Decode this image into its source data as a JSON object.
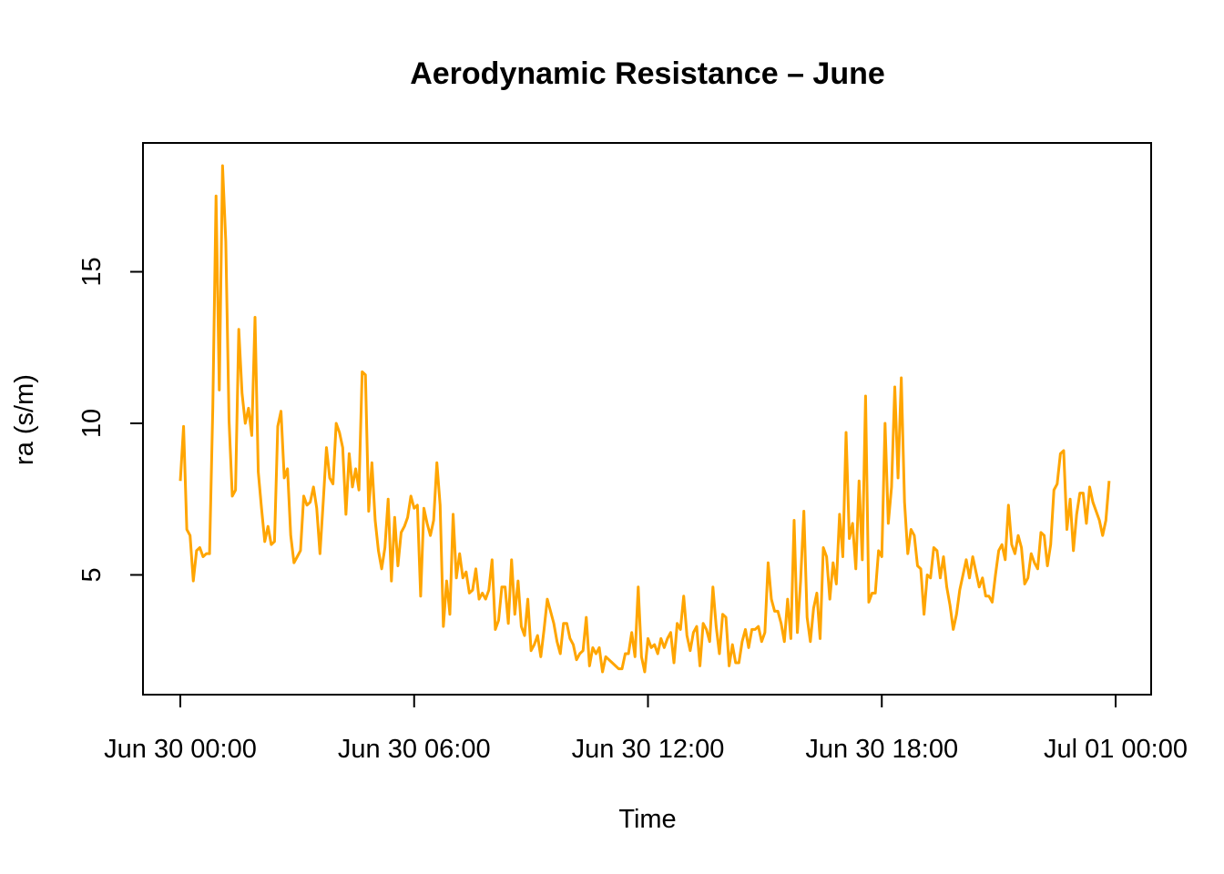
{
  "chart_data": {
    "type": "line",
    "title": "Aerodynamic Resistance – June",
    "xlabel": "Time",
    "ylabel": "ra (s/m)",
    "x_start": "Jun 30 00:00",
    "x_step_minutes": 5,
    "xlim": [
      "Jun 30 00:00",
      "Jul 01 00:00"
    ],
    "xticks": [
      {
        "value": "Jun 30 00:00",
        "label": "Jun 30 00:00"
      },
      {
        "value": "Jun 30 06:00",
        "label": "Jun 30 06:00"
      },
      {
        "value": "Jun 30 12:00",
        "label": "Jun 30 12:00"
      },
      {
        "value": "Jun 30 18:00",
        "label": "Jun 30 18:00"
      },
      {
        "value": "Jul 01 00:00",
        "label": "Jul 01 00:00"
      }
    ],
    "yticks": [
      5,
      10,
      15
    ],
    "ylim": [
      1.5,
      18.8
    ],
    "grid": false,
    "color": "#FFA500",
    "series": [
      {
        "values": [
          8.1,
          9.9,
          6.5,
          6.3,
          4.8,
          5.8,
          5.9,
          5.6,
          5.7,
          5.7,
          10.5,
          17.5,
          11.1,
          18.5,
          16.0,
          10.1,
          7.6,
          7.8,
          13.1,
          11.0,
          10.0,
          10.5,
          9.6,
          13.5,
          8.4,
          7.2,
          6.1,
          6.6,
          6.0,
          6.1,
          9.9,
          10.4,
          8.2,
          8.5,
          6.3,
          5.4,
          5.6,
          5.8,
          7.6,
          7.3,
          7.4,
          7.9,
          7.2,
          5.7,
          7.4,
          9.2,
          8.2,
          8.0,
          10.0,
          9.7,
          9.2,
          7.0,
          9.0,
          7.9,
          8.5,
          7.8,
          11.7,
          11.6,
          7.1,
          8.7,
          6.8,
          5.8,
          5.2,
          5.9,
          7.5,
          4.8,
          6.9,
          5.3,
          6.4,
          6.6,
          6.9,
          7.6,
          7.2,
          7.3,
          4.3,
          7.2,
          6.7,
          6.3,
          6.8,
          8.7,
          7.3,
          3.3,
          4.8,
          3.7,
          7.0,
          4.9,
          5.7,
          4.9,
          5.1,
          4.4,
          4.5,
          5.2,
          4.2,
          4.4,
          4.2,
          4.5,
          5.5,
          3.2,
          3.5,
          4.6,
          4.6,
          3.4,
          5.5,
          3.7,
          4.8,
          3.3,
          3.0,
          4.2,
          2.5,
          2.7,
          3.0,
          2.3,
          3.2,
          4.2,
          3.8,
          3.4,
          2.8,
          2.4,
          3.4,
          3.4,
          2.9,
          2.7,
          2.2,
          2.4,
          2.5,
          3.6,
          2.0,
          2.6,
          2.4,
          2.6,
          1.8,
          2.3,
          2.2,
          2.1,
          2.0,
          1.9,
          1.9,
          2.4,
          2.4,
          3.1,
          2.3,
          4.6,
          2.3,
          1.8,
          2.9,
          2.6,
          2.7,
          2.4,
          2.9,
          2.6,
          2.9,
          3.1,
          2.1,
          3.4,
          3.2,
          4.3,
          3.0,
          2.5,
          3.1,
          3.3,
          2.0,
          3.4,
          3.2,
          2.8,
          4.6,
          3.3,
          2.4,
          3.7,
          3.6,
          2.0,
          2.7,
          2.1,
          2.1,
          2.8,
          3.2,
          2.6,
          3.2,
          3.2,
          3.3,
          2.8,
          3.1,
          5.4,
          4.2,
          3.8,
          3.8,
          3.4,
          2.8,
          4.2,
          2.9,
          6.8,
          3.1,
          4.8,
          7.1,
          3.6,
          2.8,
          3.9,
          4.4,
          2.9,
          5.9,
          5.6,
          4.2,
          5.4,
          4.7,
          7.0,
          5.6,
          9.7,
          6.2,
          6.7,
          5.2,
          8.1,
          5.5,
          10.9,
          4.1,
          4.4,
          4.4,
          5.8,
          5.6,
          10.0,
          6.7,
          7.9,
          11.2,
          8.2,
          11.5,
          7.4,
          5.7,
          6.5,
          6.3,
          5.3,
          5.2,
          3.7,
          5.0,
          4.9,
          5.9,
          5.8,
          4.9,
          5.6,
          4.6,
          4.0,
          3.2,
          3.7,
          4.5,
          5.0,
          5.5,
          4.9,
          5.6,
          5.1,
          4.6,
          4.9,
          4.3,
          4.3,
          4.1,
          5.0,
          5.8,
          6.0,
          5.5,
          7.3,
          6.0,
          5.7,
          6.3,
          5.9,
          4.7,
          4.9,
          5.7,
          5.4,
          5.2,
          6.4,
          6.3,
          5.3,
          6.0,
          7.8,
          8.0,
          9.0,
          9.1,
          6.5,
          7.5,
          5.8,
          7.0,
          7.7,
          7.7,
          6.7,
          7.9,
          7.4,
          7.1,
          6.8,
          6.3,
          6.8,
          8.1
        ]
      }
    ]
  }
}
